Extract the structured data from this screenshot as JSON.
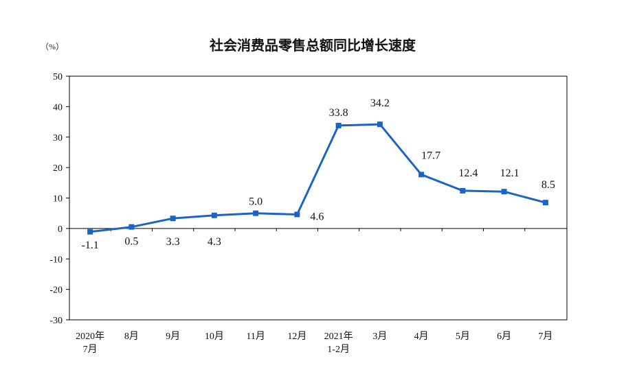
{
  "chart_data": {
    "type": "line",
    "title": "社会消费品零售总额同比增长速度",
    "ylabel": "（%）",
    "categories": [
      "2020年\n7月",
      "8月",
      "9月",
      "10月",
      "11月",
      "12月",
      "2021年\n1-2月",
      "3月",
      "4月",
      "5月",
      "6月",
      "7月"
    ],
    "series": [
      {
        "values": [
          -1.1,
          0.5,
          3.3,
          4.3,
          5.0,
          4.6,
          33.8,
          34.2,
          17.7,
          12.4,
          12.1,
          8.5
        ],
        "data_labels": [
          "-1.1",
          "0.5",
          "3.3",
          "4.3",
          "5.0",
          "4.6",
          "33.8",
          "34.2",
          "17.7",
          "12.4",
          "12.1",
          "8.5"
        ],
        "color": "#1a64c8"
      }
    ],
    "ylim": [
      -30,
      50
    ],
    "yticks": [
      50,
      40,
      30,
      20,
      10,
      0,
      -10,
      -20,
      -30
    ],
    "grid": false
  }
}
